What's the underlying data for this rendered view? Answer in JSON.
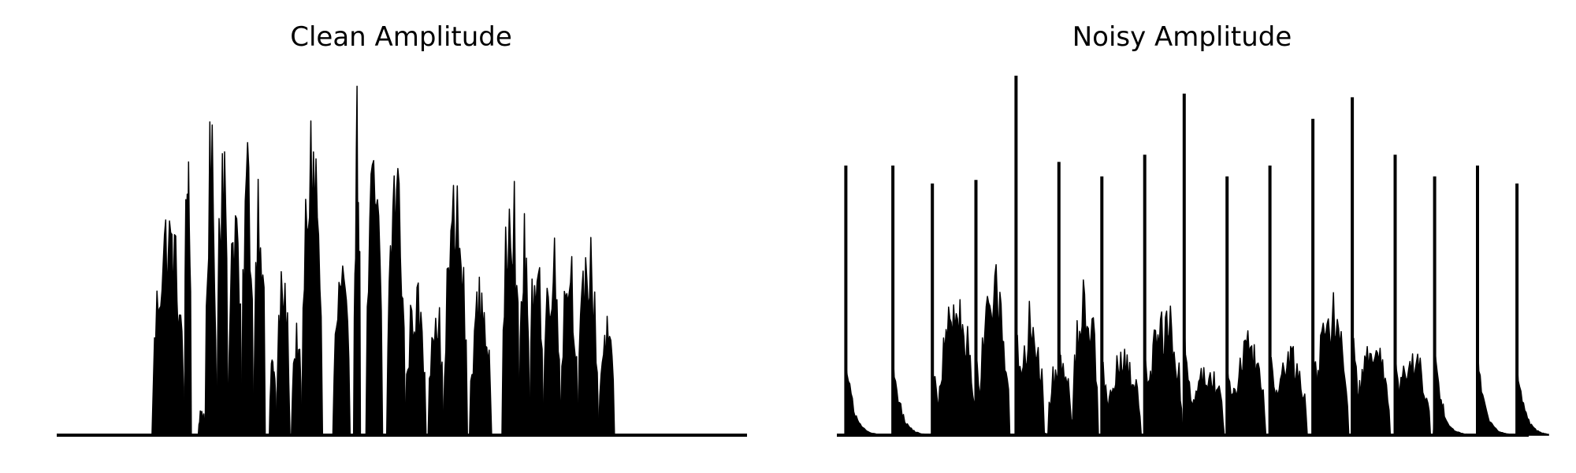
{
  "chart_data": [
    {
      "type": "area",
      "title": "Clean Amplitude",
      "xlabel": "",
      "ylabel": "",
      "grid": false,
      "axes_visible": false,
      "ylim": [
        0,
        1
      ],
      "color": "#000000",
      "bursts": [
        {
          "start": 0.138,
          "end": 0.185,
          "peak": 0.67
        },
        {
          "start": 0.185,
          "end": 0.195,
          "peak": 0.92
        },
        {
          "start": 0.205,
          "end": 0.215,
          "peak": 0.08
        },
        {
          "start": 0.215,
          "end": 0.232,
          "peak": 0.9
        },
        {
          "start": 0.232,
          "end": 0.248,
          "peak": 0.98
        },
        {
          "start": 0.248,
          "end": 0.268,
          "peak": 0.74
        },
        {
          "start": 0.268,
          "end": 0.285,
          "peak": 0.88
        },
        {
          "start": 0.285,
          "end": 0.302,
          "peak": 0.81
        },
        {
          "start": 0.308,
          "end": 0.318,
          "peak": 0.26
        },
        {
          "start": 0.318,
          "end": 0.338,
          "peak": 0.49
        },
        {
          "start": 0.34,
          "end": 0.355,
          "peak": 0.32
        },
        {
          "start": 0.355,
          "end": 0.385,
          "peak": 0.95
        },
        {
          "start": 0.4,
          "end": 0.425,
          "peak": 0.5
        },
        {
          "start": 0.43,
          "end": 0.44,
          "peak": 1.0
        },
        {
          "start": 0.448,
          "end": 0.472,
          "peak": 0.84
        },
        {
          "start": 0.478,
          "end": 0.505,
          "peak": 0.84
        },
        {
          "start": 0.505,
          "end": 0.535,
          "peak": 0.45
        },
        {
          "start": 0.538,
          "end": 0.56,
          "peak": 0.44
        },
        {
          "start": 0.56,
          "end": 0.595,
          "peak": 0.73
        },
        {
          "start": 0.598,
          "end": 0.63,
          "peak": 0.45
        },
        {
          "start": 0.645,
          "end": 0.67,
          "peak": 0.87
        },
        {
          "start": 0.67,
          "end": 0.685,
          "peak": 0.62
        },
        {
          "start": 0.685,
          "end": 0.705,
          "peak": 0.62
        },
        {
          "start": 0.705,
          "end": 0.73,
          "peak": 0.6
        },
        {
          "start": 0.73,
          "end": 0.755,
          "peak": 0.58
        },
        {
          "start": 0.755,
          "end": 0.785,
          "peak": 0.58
        },
        {
          "start": 0.785,
          "end": 0.808,
          "peak": 0.34
        }
      ]
    },
    {
      "type": "area",
      "title": "Noisy Amplitude",
      "xlabel": "",
      "ylabel": "",
      "grid": false,
      "axes_visible": false,
      "ylim": [
        0,
        1
      ],
      "color": "#000000",
      "spikes": [
        {
          "x": 0.013,
          "height": 0.75
        },
        {
          "x": 0.081,
          "height": 0.75
        },
        {
          "x": 0.138,
          "height": 0.7
        },
        {
          "x": 0.201,
          "height": 0.71
        },
        {
          "x": 0.259,
          "height": 1.0
        },
        {
          "x": 0.321,
          "height": 0.76
        },
        {
          "x": 0.383,
          "height": 0.72
        },
        {
          "x": 0.445,
          "height": 0.78
        },
        {
          "x": 0.502,
          "height": 0.95
        },
        {
          "x": 0.564,
          "height": 0.72
        },
        {
          "x": 0.626,
          "height": 0.75
        },
        {
          "x": 0.688,
          "height": 0.88
        },
        {
          "x": 0.745,
          "height": 0.94
        },
        {
          "x": 0.807,
          "height": 0.78
        },
        {
          "x": 0.864,
          "height": 0.72
        },
        {
          "x": 0.926,
          "height": 0.75
        },
        {
          "x": 0.983,
          "height": 0.7
        }
      ],
      "bursts": [
        {
          "start": 0.145,
          "end": 0.2,
          "peak": 0.42
        },
        {
          "start": 0.205,
          "end": 0.25,
          "peak": 0.48
        },
        {
          "start": 0.262,
          "end": 0.3,
          "peak": 0.38
        },
        {
          "start": 0.305,
          "end": 0.34,
          "peak": 0.25
        },
        {
          "start": 0.34,
          "end": 0.378,
          "peak": 0.46
        },
        {
          "start": 0.39,
          "end": 0.44,
          "peak": 0.25
        },
        {
          "start": 0.448,
          "end": 0.5,
          "peak": 0.39
        },
        {
          "start": 0.51,
          "end": 0.56,
          "peak": 0.22
        },
        {
          "start": 0.57,
          "end": 0.62,
          "peak": 0.3
        },
        {
          "start": 0.63,
          "end": 0.68,
          "peak": 0.26
        },
        {
          "start": 0.69,
          "end": 0.74,
          "peak": 0.4
        },
        {
          "start": 0.75,
          "end": 0.8,
          "peak": 0.28
        },
        {
          "start": 0.808,
          "end": 0.858,
          "peak": 0.25
        },
        {
          "start": 0.862,
          "end": 0.88,
          "peak": 0.12
        },
        {
          "start": 0.93,
          "end": 0.945,
          "peak": 0.05
        },
        {
          "start": 0.985,
          "end": 1.0,
          "peak": 0.04
        }
      ]
    }
  ]
}
